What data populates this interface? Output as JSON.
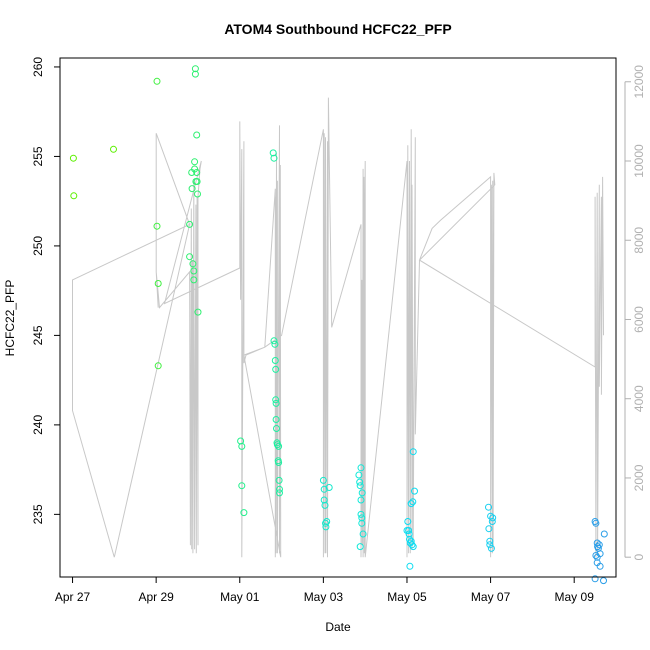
{
  "chart_data": {
    "type": "scatter",
    "title": "ATOM4 Southbound HCFC22_PFP",
    "xlabel": "Date",
    "ylabel": "HCFC22_PFP",
    "x_ticks": [
      "Apr 27",
      "Apr 29",
      "May 01",
      "May 03",
      "May 05",
      "May 07",
      "May 09"
    ],
    "x_tick_days": [
      0,
      2,
      4,
      6,
      8,
      10,
      12
    ],
    "xlim_days": [
      -0.3,
      13.0
    ],
    "ylim": [
      231.5,
      260.5
    ],
    "y_ticks": [
      235,
      240,
      245,
      250,
      255,
      260
    ],
    "y2lim": [
      -500,
      12600
    ],
    "y2_ticks": [
      0,
      2000,
      4000,
      6000,
      8000,
      10000,
      12000
    ],
    "right_axis_color": "#b0b0b0",
    "line_color": "#c8c8c8",
    "series": [
      {
        "name": "",
        "kind": "points",
        "points": [
          {
            "x": 0.02,
            "y": 254.9,
            "color": "#5cf000"
          },
          {
            "x": 0.03,
            "y": 252.8,
            "color": "#5cf000"
          },
          {
            "x": 0.98,
            "y": 255.4,
            "color": "#5cf000"
          },
          {
            "x": 2.02,
            "y": 259.2,
            "color": "#40f040"
          },
          {
            "x": 2.02,
            "y": 251.1,
            "color": "#40f040"
          },
          {
            "x": 2.05,
            "y": 247.9,
            "color": "#40f040"
          },
          {
            "x": 2.05,
            "y": 243.3,
            "color": "#40f040"
          },
          {
            "x": 2.8,
            "y": 251.2,
            "color": "#2ef070"
          },
          {
            "x": 2.8,
            "y": 249.4,
            "color": "#2ef070"
          },
          {
            "x": 2.85,
            "y": 254.1,
            "color": "#2ef070"
          },
          {
            "x": 2.86,
            "y": 253.2,
            "color": "#2ef070"
          },
          {
            "x": 2.88,
            "y": 249.0,
            "color": "#2ef070"
          },
          {
            "x": 2.9,
            "y": 248.6,
            "color": "#2ef070"
          },
          {
            "x": 2.9,
            "y": 248.1,
            "color": "#2ef070"
          },
          {
            "x": 2.92,
            "y": 254.7,
            "color": "#2ef070"
          },
          {
            "x": 2.92,
            "y": 254.3,
            "color": "#2ef070"
          },
          {
            "x": 2.94,
            "y": 259.9,
            "color": "#2ef070"
          },
          {
            "x": 2.94,
            "y": 259.6,
            "color": "#2ef070"
          },
          {
            "x": 2.95,
            "y": 253.6,
            "color": "#2ef070"
          },
          {
            "x": 2.97,
            "y": 256.2,
            "color": "#2ef070"
          },
          {
            "x": 2.97,
            "y": 254.1,
            "color": "#2ef070"
          },
          {
            "x": 2.98,
            "y": 253.6,
            "color": "#2ef070"
          },
          {
            "x": 2.99,
            "y": 252.9,
            "color": "#2ef070"
          },
          {
            "x": 3.0,
            "y": 246.3,
            "color": "#2ef070"
          },
          {
            "x": 4.02,
            "y": 239.1,
            "color": "#22f08c"
          },
          {
            "x": 4.05,
            "y": 238.8,
            "color": "#22f08c"
          },
          {
            "x": 4.05,
            "y": 236.6,
            "color": "#22f08c"
          },
          {
            "x": 4.1,
            "y": 235.1,
            "color": "#22f08c"
          },
          {
            "x": 4.8,
            "y": 255.2,
            "color": "#1cf0a0"
          },
          {
            "x": 4.82,
            "y": 254.9,
            "color": "#1cf0a0"
          },
          {
            "x": 4.82,
            "y": 244.7,
            "color": "#1cf0a0"
          },
          {
            "x": 4.84,
            "y": 244.5,
            "color": "#1cf0a0"
          },
          {
            "x": 4.85,
            "y": 243.6,
            "color": "#1cf0a0"
          },
          {
            "x": 4.86,
            "y": 243.1,
            "color": "#1cf0a0"
          },
          {
            "x": 4.86,
            "y": 241.4,
            "color": "#1cf0a0"
          },
          {
            "x": 4.87,
            "y": 241.2,
            "color": "#1cf0a0"
          },
          {
            "x": 4.87,
            "y": 240.3,
            "color": "#1cf0a0"
          },
          {
            "x": 4.88,
            "y": 239.8,
            "color": "#1cf0a0"
          },
          {
            "x": 4.89,
            "y": 239.0,
            "color": "#1cf0a0"
          },
          {
            "x": 4.9,
            "y": 238.9,
            "color": "#1cf0a0"
          },
          {
            "x": 4.92,
            "y": 238.0,
            "color": "#1cf0a0"
          },
          {
            "x": 4.93,
            "y": 237.9,
            "color": "#1cf0a0"
          },
          {
            "x": 4.93,
            "y": 238.8,
            "color": "#1cf0a0"
          },
          {
            "x": 4.94,
            "y": 236.9,
            "color": "#1cf0a0"
          },
          {
            "x": 4.95,
            "y": 236.4,
            "color": "#1cf0a0"
          },
          {
            "x": 4.95,
            "y": 236.2,
            "color": "#1cf0a0"
          },
          {
            "x": 6.0,
            "y": 236.9,
            "color": "#14e8cc"
          },
          {
            "x": 6.02,
            "y": 236.4,
            "color": "#14e8cc"
          },
          {
            "x": 6.02,
            "y": 235.8,
            "color": "#14e8cc"
          },
          {
            "x": 6.04,
            "y": 235.5,
            "color": "#14e8cc"
          },
          {
            "x": 6.05,
            "y": 234.5,
            "color": "#14e8cc"
          },
          {
            "x": 6.06,
            "y": 234.3,
            "color": "#14e8cc"
          },
          {
            "x": 6.08,
            "y": 234.6,
            "color": "#14e8cc"
          },
          {
            "x": 6.14,
            "y": 236.5,
            "color": "#14e8cc"
          },
          {
            "x": 6.85,
            "y": 237.2,
            "color": "#10e8d8"
          },
          {
            "x": 6.87,
            "y": 236.8,
            "color": "#10e8d8"
          },
          {
            "x": 6.88,
            "y": 236.6,
            "color": "#10e8d8"
          },
          {
            "x": 6.9,
            "y": 237.6,
            "color": "#10e8d8"
          },
          {
            "x": 6.9,
            "y": 235.8,
            "color": "#10e8d8"
          },
          {
            "x": 6.92,
            "y": 234.8,
            "color": "#10e8d8"
          },
          {
            "x": 6.92,
            "y": 234.5,
            "color": "#10e8d8"
          },
          {
            "x": 6.93,
            "y": 236.2,
            "color": "#10e8d8"
          },
          {
            "x": 6.95,
            "y": 233.9,
            "color": "#10e8d8"
          },
          {
            "x": 6.88,
            "y": 233.2,
            "color": "#10e8d8"
          },
          {
            "x": 6.9,
            "y": 235.0,
            "color": "#10e8d8"
          },
          {
            "x": 8.02,
            "y": 234.6,
            "color": "#0cdcf0"
          },
          {
            "x": 8.04,
            "y": 234.1,
            "color": "#0cdcf0"
          },
          {
            "x": 8.05,
            "y": 233.9,
            "color": "#0cdcf0"
          },
          {
            "x": 8.06,
            "y": 233.6,
            "color": "#0cdcf0"
          },
          {
            "x": 8.08,
            "y": 233.4,
            "color": "#0cdcf0"
          },
          {
            "x": 8.1,
            "y": 233.5,
            "color": "#0cdcf0"
          },
          {
            "x": 8.1,
            "y": 235.6,
            "color": "#0cdcf0"
          },
          {
            "x": 8.12,
            "y": 233.3,
            "color": "#0cdcf0"
          },
          {
            "x": 8.14,
            "y": 235.7,
            "color": "#0cdcf0"
          },
          {
            "x": 8.15,
            "y": 233.2,
            "color": "#0cdcf0"
          },
          {
            "x": 8.15,
            "y": 238.5,
            "color": "#0cdcf0"
          },
          {
            "x": 8.18,
            "y": 236.3,
            "color": "#0cdcf0"
          },
          {
            "x": 8.07,
            "y": 232.1,
            "color": "#0cdcf0"
          },
          {
            "x": 8.0,
            "y": 234.1,
            "color": "#0cdcf0"
          },
          {
            "x": 9.95,
            "y": 235.4,
            "color": "#18d0f0"
          },
          {
            "x": 9.96,
            "y": 234.2,
            "color": "#18d0f0"
          },
          {
            "x": 9.98,
            "y": 233.3,
            "color": "#18d0f0"
          },
          {
            "x": 9.98,
            "y": 233.5,
            "color": "#18d0f0"
          },
          {
            "x": 10.0,
            "y": 234.9,
            "color": "#18d0f0"
          },
          {
            "x": 10.02,
            "y": 233.1,
            "color": "#18d0f0"
          },
          {
            "x": 10.04,
            "y": 234.6,
            "color": "#18d0f0"
          },
          {
            "x": 10.05,
            "y": 234.8,
            "color": "#18d0f0"
          },
          {
            "x": 12.5,
            "y": 234.6,
            "color": "#2a9ee8"
          },
          {
            "x": 12.52,
            "y": 234.5,
            "color": "#2a9ee8"
          },
          {
            "x": 12.55,
            "y": 233.4,
            "color": "#2a9ee8"
          },
          {
            "x": 12.56,
            "y": 233.2,
            "color": "#2a9ee8"
          },
          {
            "x": 12.58,
            "y": 233.1,
            "color": "#2a9ee8"
          },
          {
            "x": 12.6,
            "y": 233.3,
            "color": "#2a9ee8"
          },
          {
            "x": 12.52,
            "y": 232.7,
            "color": "#2a9ee8"
          },
          {
            "x": 12.55,
            "y": 232.6,
            "color": "#2a9ee8"
          },
          {
            "x": 12.62,
            "y": 232.8,
            "color": "#2a9ee8"
          },
          {
            "x": 12.62,
            "y": 232.1,
            "color": "#2a9ee8"
          },
          {
            "x": 12.55,
            "y": 232.3,
            "color": "#2a9ee8"
          },
          {
            "x": 12.5,
            "y": 231.4,
            "color": "#2a9ee8"
          },
          {
            "x": 12.7,
            "y": 231.3,
            "color": "#2a9ee8"
          },
          {
            "x": 12.72,
            "y": 233.9,
            "color": "#2a9ee8"
          }
        ]
      },
      {
        "name": "",
        "kind": "line",
        "axis": "right",
        "points": [
          [
            0.0,
            3700
          ],
          [
            0.0,
            7000
          ],
          [
            2.8,
            8400
          ],
          [
            1.0,
            0
          ],
          [
            0.0,
            3700
          ],
          [
            0.0,
            7000
          ],
          [
            2.8,
            8400
          ],
          [
            2.0,
            10700
          ],
          [
            2.0,
            7200
          ],
          [
            2.05,
            6300
          ],
          [
            2.0,
            7200
          ],
          [
            2.08,
            6300
          ],
          [
            2.8,
            7200
          ],
          [
            2.82,
            300
          ],
          [
            2.84,
            8800
          ],
          [
            2.85,
            200
          ],
          [
            2.87,
            7500
          ],
          [
            2.88,
            100
          ],
          [
            2.9,
            9500
          ],
          [
            2.92,
            200
          ],
          [
            2.95,
            8900
          ],
          [
            2.96,
            100
          ],
          [
            2.98,
            9100
          ],
          [
            3.0,
            300
          ],
          [
            3.0,
            9100
          ],
          [
            3.05,
            9800
          ],
          [
            3.08,
            10000
          ],
          [
            2.2,
            6400
          ],
          [
            4.0,
            7300
          ],
          [
            4.0,
            11000
          ],
          [
            4.02,
            6500
          ],
          [
            4.05,
            10300
          ],
          [
            4.05,
            0
          ],
          [
            4.1,
            10500
          ],
          [
            4.1,
            4900
          ],
          [
            4.15,
            5100
          ],
          [
            4.6,
            5300
          ],
          [
            4.85,
            9300
          ],
          [
            4.85,
            0
          ],
          [
            4.86,
            9100
          ],
          [
            4.86,
            100
          ],
          [
            4.88,
            10200
          ],
          [
            4.89,
            100
          ],
          [
            4.9,
            9500
          ],
          [
            4.9,
            100
          ],
          [
            4.95,
            10900
          ],
          [
            4.95,
            100
          ],
          [
            4.97,
            9900
          ],
          [
            4.98,
            0
          ],
          [
            4.1,
            5100
          ],
          [
            4.6,
            5300
          ],
          [
            5.0,
            5600
          ],
          [
            6.0,
            10800
          ],
          [
            6.0,
            0
          ],
          [
            6.02,
            10700
          ],
          [
            6.04,
            100
          ],
          [
            6.05,
            10600
          ],
          [
            6.06,
            100
          ],
          [
            6.1,
            10500
          ],
          [
            6.1,
            0
          ],
          [
            6.12,
            11600
          ],
          [
            6.2,
            5800
          ],
          [
            6.9,
            8400
          ],
          [
            6.9,
            0
          ],
          [
            6.92,
            7000
          ],
          [
            6.93,
            300
          ],
          [
            6.95,
            9800
          ],
          [
            6.95,
            0
          ],
          [
            6.97,
            9600
          ],
          [
            6.98,
            100
          ],
          [
            6.99,
            8800
          ],
          [
            7.0,
            10000
          ],
          [
            7.0,
            0
          ],
          [
            8.0,
            10000
          ],
          [
            8.0,
            0
          ],
          [
            8.02,
            10400
          ],
          [
            8.04,
            100
          ],
          [
            8.06,
            10000
          ],
          [
            8.08,
            100
          ],
          [
            8.1,
            10800
          ],
          [
            8.12,
            200
          ],
          [
            8.12,
            9400
          ],
          [
            8.15,
            400
          ],
          [
            8.2,
            10600
          ],
          [
            8.2,
            3100
          ],
          [
            8.3,
            7500
          ],
          [
            8.6,
            8300
          ],
          [
            8.8,
            8500
          ],
          [
            10.0,
            9600
          ],
          [
            10.0,
            0
          ],
          [
            10.02,
            9400
          ],
          [
            10.04,
            100
          ],
          [
            10.05,
            9500
          ],
          [
            10.06,
            200
          ],
          [
            10.08,
            9700
          ],
          [
            10.1,
            9400
          ],
          [
            8.3,
            7500
          ],
          [
            12.5,
            4800
          ],
          [
            12.5,
            9100
          ],
          [
            12.52,
            0
          ],
          [
            12.55,
            9200
          ],
          [
            12.56,
            100
          ],
          [
            12.6,
            9400
          ],
          [
            12.6,
            4300
          ],
          [
            12.65,
            9100
          ],
          [
            12.65,
            4100
          ],
          [
            12.68,
            9600
          ],
          [
            12.7,
            5600
          ]
        ]
      }
    ]
  }
}
